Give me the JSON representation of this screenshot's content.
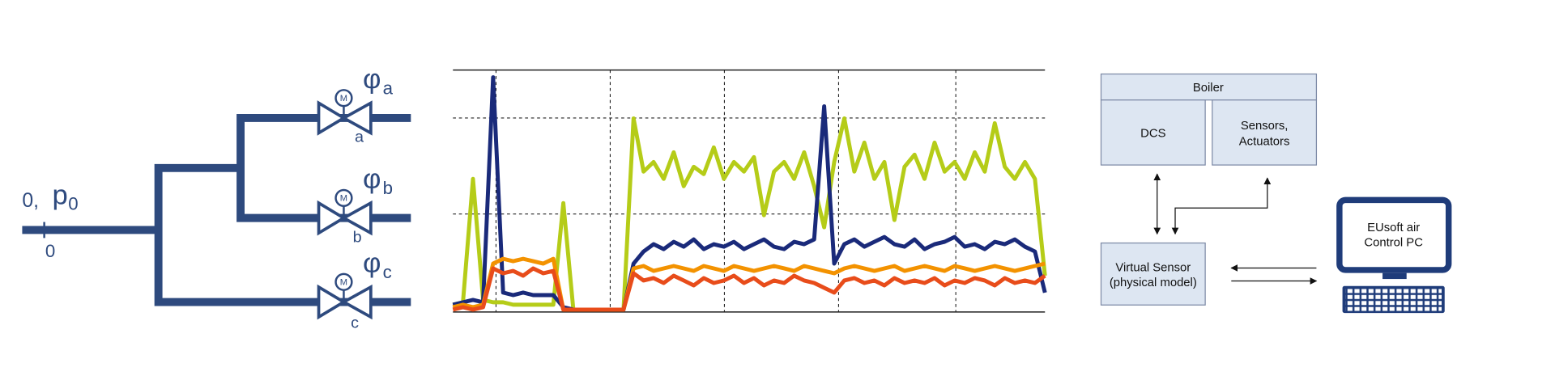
{
  "piping": {
    "inlet_label": "0,",
    "pressure_symbol": "p",
    "pressure_subscript": "0",
    "node_label": "0",
    "branches": [
      {
        "symbol": "φ",
        "subscript": "a",
        "valve_label": "a",
        "motor": "M"
      },
      {
        "symbol": "φ",
        "subscript": "b",
        "valve_label": "b",
        "motor": "M"
      },
      {
        "symbol": "φ",
        "subscript": "c",
        "valve_label": "c",
        "motor": "M"
      }
    ]
  },
  "chart_data": {
    "type": "line",
    "ylim": [
      0,
      100
    ],
    "series": [
      {
        "color": "#b5cc18",
        "values": [
          3,
          4,
          55,
          5,
          4,
          4,
          3,
          3,
          3,
          3,
          3,
          45,
          1,
          1,
          1,
          1,
          1,
          1,
          80,
          58,
          62,
          55,
          66,
          52,
          60,
          57,
          68,
          55,
          62,
          58,
          64,
          40,
          58,
          62,
          55,
          66,
          52,
          35,
          62,
          80,
          58,
          70,
          55,
          62,
          38,
          60,
          65,
          55,
          70,
          58,
          62,
          55,
          66,
          58,
          78,
          60,
          55,
          62,
          55,
          15
        ]
      },
      {
        "color": "#1a2a7a",
        "values": [
          3,
          4,
          5,
          4,
          97,
          8,
          7,
          8,
          7,
          7,
          7,
          2,
          1,
          1,
          1,
          1,
          1,
          1,
          20,
          25,
          28,
          26,
          29,
          27,
          30,
          26,
          28,
          27,
          29,
          26,
          28,
          30,
          27,
          26,
          29,
          28,
          30,
          85,
          20,
          28,
          30,
          27,
          29,
          31,
          28,
          27,
          30,
          26,
          28,
          29,
          31,
          27,
          28,
          26,
          29,
          28,
          30,
          27,
          25,
          8
        ]
      },
      {
        "color": "#f39200",
        "values": [
          2,
          3,
          2,
          3,
          20,
          22,
          21,
          22,
          21,
          20,
          22,
          1,
          1,
          1,
          1,
          1,
          1,
          1,
          18,
          19,
          17,
          18,
          19,
          18,
          17,
          19,
          18,
          17,
          19,
          18,
          17,
          18,
          19,
          18,
          17,
          19,
          18,
          17,
          16,
          18,
          19,
          18,
          17,
          18,
          19,
          17,
          18,
          19,
          18,
          17,
          19,
          18,
          17,
          18,
          19,
          18,
          17,
          18,
          19,
          20
        ]
      },
      {
        "color": "#e84c1a",
        "values": [
          1,
          2,
          1,
          2,
          18,
          16,
          17,
          15,
          18,
          16,
          17,
          1,
          1,
          1,
          1,
          1,
          1,
          1,
          16,
          13,
          14,
          12,
          15,
          13,
          11,
          14,
          12,
          13,
          15,
          12,
          14,
          11,
          13,
          12,
          15,
          13,
          12,
          10,
          8,
          13,
          14,
          12,
          13,
          11,
          14,
          12,
          13,
          12,
          14,
          11,
          13,
          12,
          14,
          13,
          11,
          14,
          12,
          13,
          12,
          15
        ]
      }
    ]
  },
  "block_diagram": {
    "boiler": "Boiler",
    "dcs": "DCS",
    "sensors": [
      "Sensors,",
      "Actuators"
    ],
    "virtual_sensor": [
      "Virtual Sensor",
      "(physical model)"
    ],
    "control_pc": [
      "EUsoft air",
      "Control PC"
    ]
  }
}
